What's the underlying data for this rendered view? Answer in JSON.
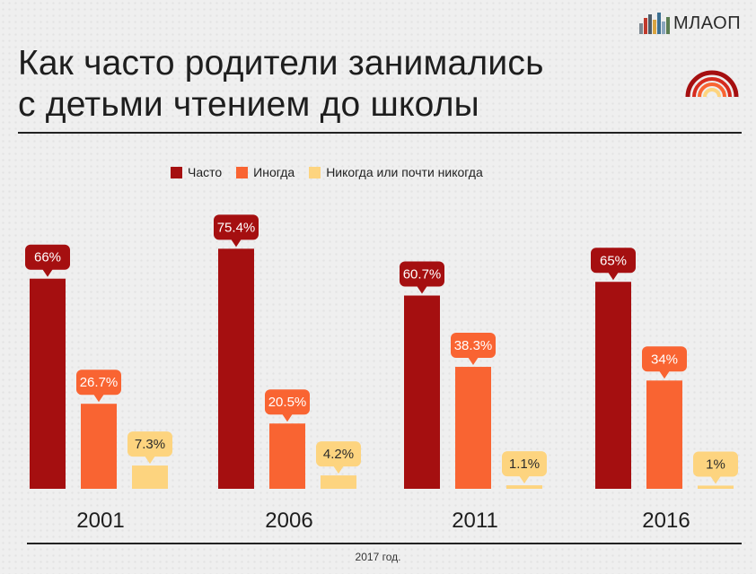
{
  "logo": {
    "text": "МЛАОП",
    "icon": "city-bars-icon"
  },
  "title_lines": [
    "Как часто родители занимались",
    "с детьми чтением до школы"
  ],
  "footer": "2017 год.",
  "colors": {
    "often": "#a50f10",
    "sometimes": "#f96432",
    "never": "#fdd47f"
  },
  "chart_data": {
    "type": "bar",
    "categories": [
      "2001",
      "2006",
      "2011",
      "2016"
    ],
    "series": [
      {
        "name": "Часто",
        "values": [
          66,
          75.4,
          60.7,
          65
        ],
        "labels": [
          "66%",
          "75.4%",
          "60.7%",
          "65%"
        ]
      },
      {
        "name": "Иногда",
        "values": [
          26.7,
          20.5,
          38.3,
          34
        ],
        "labels": [
          "26.7%",
          "20.5%",
          "38.3%",
          "34%"
        ]
      },
      {
        "name": "Никогда или почти никогда",
        "values": [
          7.3,
          4.2,
          1.1,
          1
        ],
        "labels": [
          "7.3%",
          "4.2%",
          "1.1%",
          "1%"
        ]
      }
    ],
    "title": "Как часто родители занимались с детьми чтением до школы",
    "legend_position": "top",
    "grid": false
  }
}
